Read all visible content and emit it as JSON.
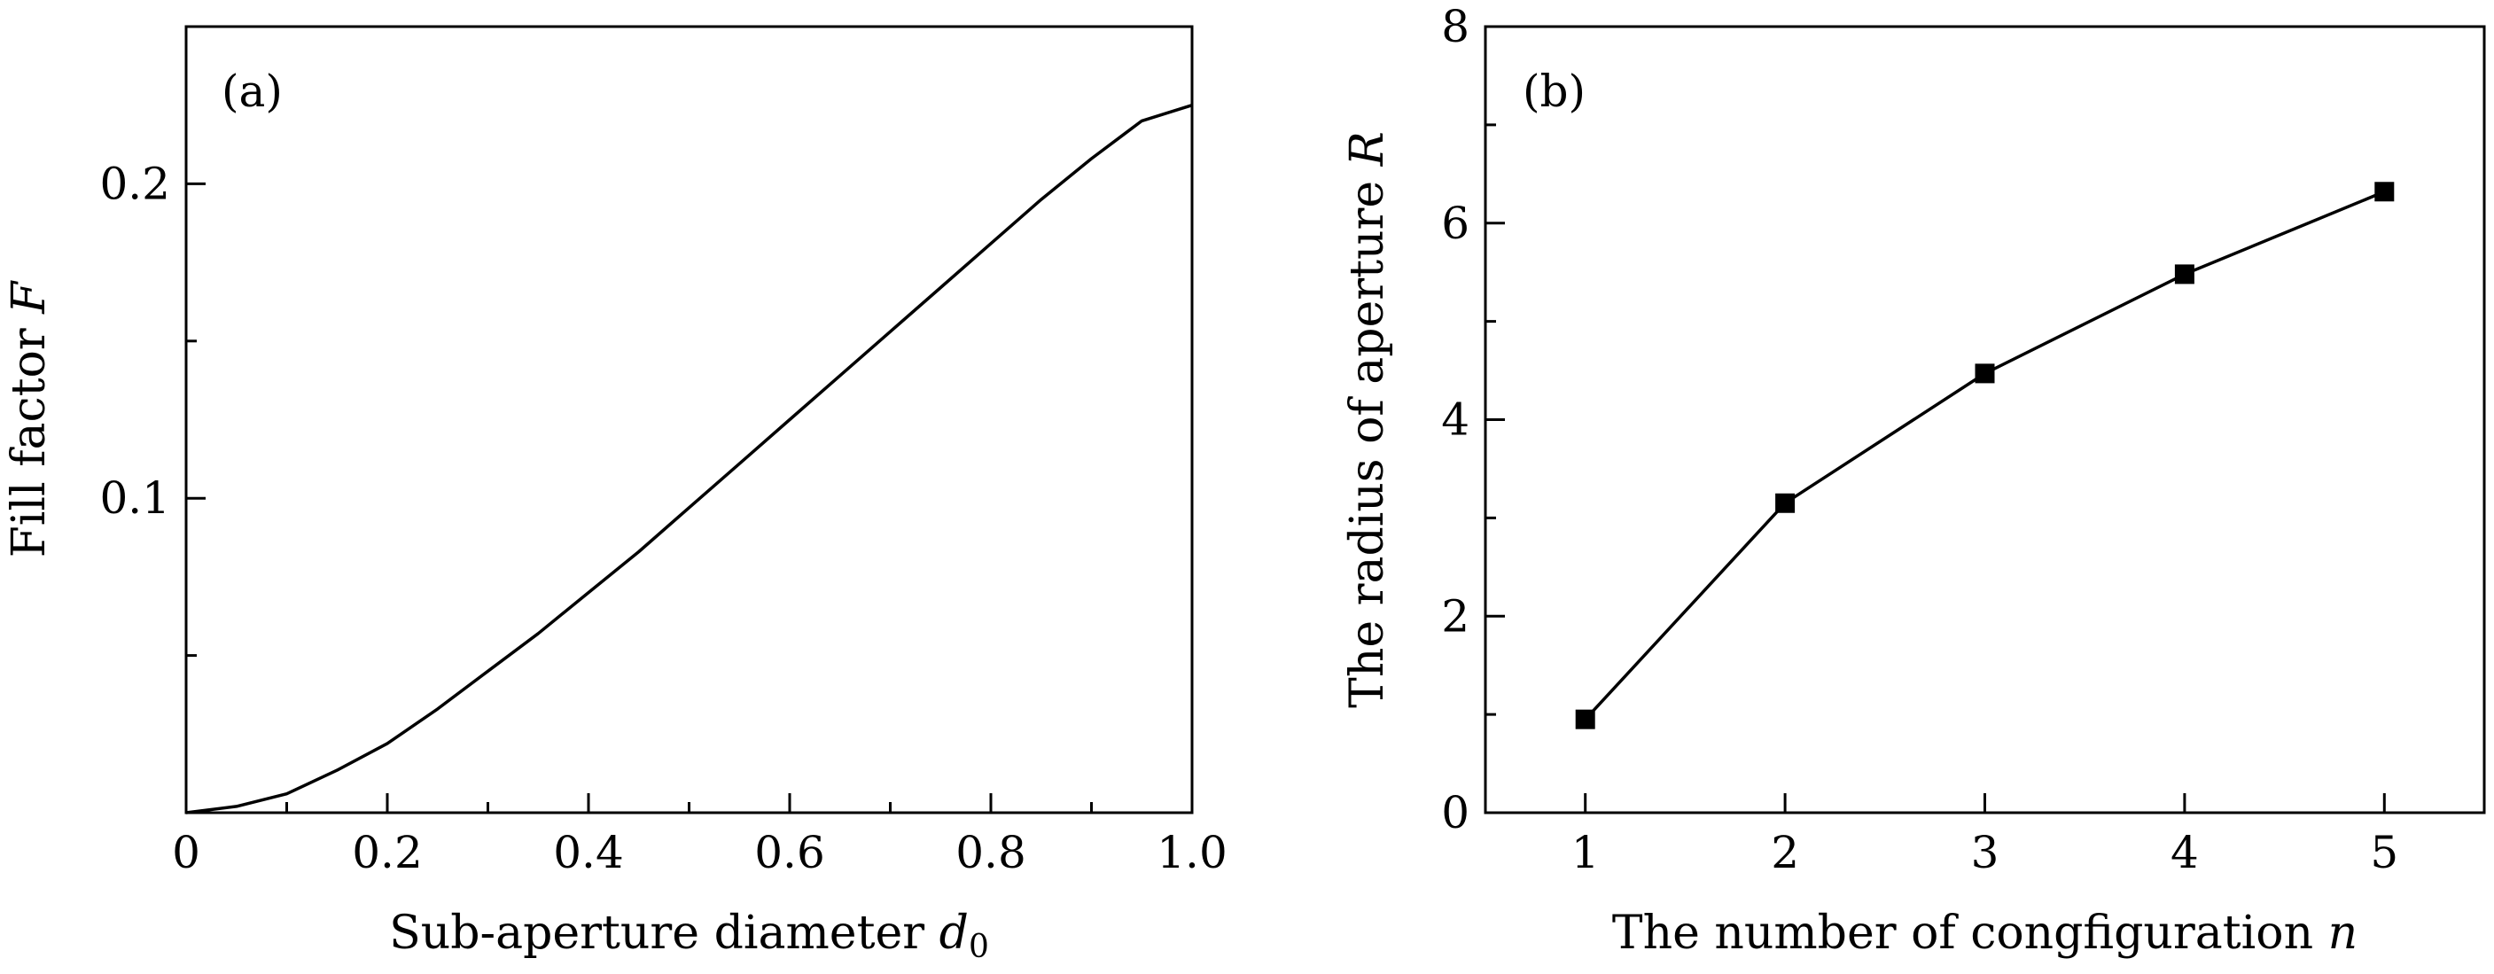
{
  "chart_data": [
    {
      "type": "line",
      "panel_label": "(a)",
      "xlabel": "Sub-aperture diameter",
      "xlabel_symbol": "d",
      "xlabel_subscript": "0",
      "ylabel": "Fill factor",
      "ylabel_symbol": "F",
      "xlim": [
        0,
        1.0
      ],
      "ylim": [
        0,
        0.25
      ],
      "xticks": [
        0,
        0.2,
        0.4,
        0.6,
        0.8,
        1.0
      ],
      "xtick_labels": [
        "0",
        "0.2",
        "0.4",
        "0.6",
        "0.8",
        "1.0"
      ],
      "xticks_minor": [
        0.1,
        0.3,
        0.5,
        0.7,
        0.9
      ],
      "yticks": [
        0.1,
        0.2
      ],
      "ytick_labels": [
        "0.1",
        "0.2"
      ],
      "yticks_minor": [
        0.05,
        0.15
      ],
      "grid": false,
      "series": [
        {
          "x": [
            0,
            0.05,
            0.1,
            0.15,
            0.2,
            0.25,
            0.3,
            0.35,
            0.4,
            0.45,
            0.5,
            0.55,
            0.6,
            0.65,
            0.7,
            0.75,
            0.8,
            0.85,
            0.9,
            0.95,
            1.0
          ],
          "y": [
            0,
            0.002,
            0.006,
            0.0135,
            0.022,
            0.033,
            0.045,
            0.057,
            0.07,
            0.083,
            0.097,
            0.111,
            0.125,
            0.139,
            0.153,
            0.167,
            0.181,
            0.195,
            0.208,
            0.22,
            0.225
          ]
        }
      ]
    },
    {
      "type": "line",
      "panel_label": "(b)",
      "xlabel": "The number of congfiguration",
      "xlabel_symbol": "n",
      "ylabel": "The radius of aperture",
      "ylabel_symbol": "R",
      "xlim": [
        0.5,
        5.5
      ],
      "ylim": [
        0,
        8
      ],
      "xticks": [
        1,
        2,
        3,
        4,
        5
      ],
      "xtick_labels": [
        "1",
        "2",
        "3",
        "4",
        "5"
      ],
      "yticks": [
        0,
        2,
        4,
        6,
        8
      ],
      "ytick_labels": [
        "0",
        "2",
        "4",
        "6",
        "8"
      ],
      "yticks_minor": [
        1,
        3,
        5,
        7
      ],
      "marker": "square",
      "grid": false,
      "series": [
        {
          "x": [
            1,
            2,
            3,
            4,
            5
          ],
          "y": [
            0.95,
            3.15,
            4.47,
            5.48,
            6.32
          ]
        }
      ]
    }
  ]
}
